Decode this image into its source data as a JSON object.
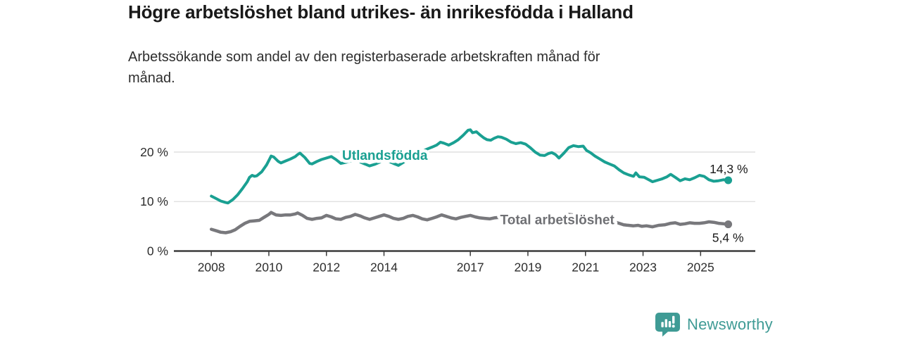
{
  "header": {
    "title": "Högre arbetslöshet bland utrikes- än inrikesfödda i Halland",
    "subtitle": "Arbetssökande som andel av den registerbaserade arbetskraften månad för\nmånad."
  },
  "footer": {
    "brand": "Newsworthy"
  },
  "colors": {
    "series_utlandsfodda": "#1aa092",
    "series_total": "#78787c",
    "label_total": "#6f7074",
    "brand_teal": "#3f9b95",
    "grid": "#dedede",
    "axis": "#3b3b3b",
    "tick_text": "#2d2d2d",
    "annotation_text": "#1a1a1a"
  },
  "chart_data": {
    "type": "line",
    "title": "Högre arbetslöshet bland utrikes- än inrikesfödda i Halland",
    "subtitle": "Arbetssökande som andel av den registerbaserade arbetskraften månad för månad.",
    "grid": "horizontal-only",
    "legend_position": "inline-labels",
    "x_axis": {
      "min": 2006.7,
      "max": 2026.9,
      "ticks": [
        {
          "value": 2008,
          "label": "2008"
        },
        {
          "value": 2010,
          "label": "2010"
        },
        {
          "value": 2012,
          "label": "2012"
        },
        {
          "value": 2014,
          "label": "2014"
        },
        {
          "value": 2017,
          "label": "2017"
        },
        {
          "value": 2019,
          "label": "2019"
        },
        {
          "value": 2021,
          "label": "2021"
        },
        {
          "value": 2023,
          "label": "2023"
        },
        {
          "value": 2025,
          "label": "2025"
        }
      ]
    },
    "y_axis": {
      "min": 0,
      "max": 25.4,
      "unit": "%",
      "ticks": [
        {
          "value": 0,
          "label": "0 %"
        },
        {
          "value": 10,
          "label": "10 %"
        },
        {
          "value": 20,
          "label": "20 %"
        }
      ]
    },
    "series": [
      {
        "id": "utlandsfodda",
        "name": "Utlandsfödda",
        "color": "#1aa092",
        "line_width": 4,
        "inline_label": {
          "text": "Utlandsfödda",
          "year": 2014.03,
          "value": 18.4
        },
        "end_dot": true,
        "end_value": 14.3,
        "end_label": "14,3 %",
        "end_label_offset": {
          "dx": 28,
          "dy": -10
        },
        "points": [
          [
            2008.0,
            11.1
          ],
          [
            2008.17,
            10.6
          ],
          [
            2008.33,
            10.1
          ],
          [
            2008.5,
            9.8
          ],
          [
            2008.58,
            9.7
          ],
          [
            2008.75,
            10.4
          ],
          [
            2008.92,
            11.4
          ],
          [
            2009.08,
            12.6
          ],
          [
            2009.25,
            14.0
          ],
          [
            2009.33,
            14.9
          ],
          [
            2009.42,
            15.3
          ],
          [
            2009.5,
            15.1
          ],
          [
            2009.58,
            15.2
          ],
          [
            2009.75,
            16.0
          ],
          [
            2009.92,
            17.4
          ],
          [
            2010.08,
            19.2
          ],
          [
            2010.17,
            19.0
          ],
          [
            2010.33,
            18.1
          ],
          [
            2010.42,
            17.8
          ],
          [
            2010.58,
            18.2
          ],
          [
            2010.75,
            18.6
          ],
          [
            2010.92,
            19.1
          ],
          [
            2011.0,
            19.5
          ],
          [
            2011.08,
            19.8
          ],
          [
            2011.25,
            18.9
          ],
          [
            2011.42,
            17.7
          ],
          [
            2011.5,
            17.6
          ],
          [
            2011.67,
            18.1
          ],
          [
            2011.83,
            18.5
          ],
          [
            2012.0,
            18.8
          ],
          [
            2012.17,
            19.1
          ],
          [
            2012.33,
            18.5
          ],
          [
            2012.5,
            17.7
          ],
          [
            2012.67,
            17.9
          ],
          [
            2012.83,
            18.2
          ],
          [
            2013.0,
            18.4
          ],
          [
            2013.17,
            18.0
          ],
          [
            2013.33,
            17.6
          ],
          [
            2013.5,
            17.2
          ],
          [
            2013.67,
            17.5
          ],
          [
            2013.83,
            17.9
          ],
          [
            2014.0,
            18.3
          ],
          [
            2014.17,
            18.1
          ],
          [
            2014.33,
            17.7
          ],
          [
            2014.5,
            17.3
          ],
          [
            2014.67,
            17.9
          ],
          [
            2014.83,
            18.6
          ],
          [
            2015.0,
            19.2
          ],
          [
            2015.17,
            19.6
          ],
          [
            2015.33,
            20.1
          ],
          [
            2015.5,
            20.6
          ],
          [
            2015.67,
            21.0
          ],
          [
            2015.83,
            21.4
          ],
          [
            2015.96,
            22.0
          ],
          [
            2016.08,
            21.8
          ],
          [
            2016.25,
            21.4
          ],
          [
            2016.42,
            21.9
          ],
          [
            2016.58,
            22.5
          ],
          [
            2016.75,
            23.4
          ],
          [
            2016.92,
            24.4
          ],
          [
            2017.0,
            24.5
          ],
          [
            2017.08,
            23.9
          ],
          [
            2017.21,
            24.1
          ],
          [
            2017.33,
            23.5
          ],
          [
            2017.46,
            22.9
          ],
          [
            2017.58,
            22.5
          ],
          [
            2017.71,
            22.4
          ],
          [
            2017.83,
            22.8
          ],
          [
            2017.96,
            23.1
          ],
          [
            2018.08,
            23.0
          ],
          [
            2018.25,
            22.6
          ],
          [
            2018.42,
            22.0
          ],
          [
            2018.58,
            21.7
          ],
          [
            2018.75,
            21.9
          ],
          [
            2018.92,
            21.6
          ],
          [
            2019.08,
            20.9
          ],
          [
            2019.25,
            20.0
          ],
          [
            2019.42,
            19.4
          ],
          [
            2019.58,
            19.3
          ],
          [
            2019.71,
            19.7
          ],
          [
            2019.83,
            19.9
          ],
          [
            2019.96,
            19.5
          ],
          [
            2020.08,
            18.8
          ],
          [
            2020.25,
            19.8
          ],
          [
            2020.42,
            20.9
          ],
          [
            2020.58,
            21.3
          ],
          [
            2020.75,
            21.1
          ],
          [
            2020.92,
            21.2
          ],
          [
            2021.04,
            20.3
          ],
          [
            2021.17,
            19.9
          ],
          [
            2021.33,
            19.2
          ],
          [
            2021.5,
            18.6
          ],
          [
            2021.67,
            18.0
          ],
          [
            2021.83,
            17.6
          ],
          [
            2022.0,
            17.2
          ],
          [
            2022.17,
            16.4
          ],
          [
            2022.33,
            15.8
          ],
          [
            2022.5,
            15.4
          ],
          [
            2022.67,
            15.1
          ],
          [
            2022.75,
            15.8
          ],
          [
            2022.87,
            15.0
          ],
          [
            2023.04,
            14.9
          ],
          [
            2023.17,
            14.5
          ],
          [
            2023.33,
            14.0
          ],
          [
            2023.5,
            14.3
          ],
          [
            2023.67,
            14.6
          ],
          [
            2023.83,
            15.0
          ],
          [
            2023.96,
            15.5
          ],
          [
            2024.12,
            14.9
          ],
          [
            2024.29,
            14.2
          ],
          [
            2024.46,
            14.6
          ],
          [
            2024.62,
            14.4
          ],
          [
            2024.79,
            14.8
          ],
          [
            2024.96,
            15.3
          ],
          [
            2025.12,
            15.1
          ],
          [
            2025.29,
            14.4
          ],
          [
            2025.46,
            14.1
          ],
          [
            2025.62,
            14.2
          ],
          [
            2025.79,
            14.4
          ],
          [
            2025.96,
            14.3
          ]
        ]
      },
      {
        "id": "total",
        "name": "Total arbetslöshet",
        "color": "#78787c",
        "line_width": 4.5,
        "inline_label": {
          "text": "Total arbetslöshet",
          "year": 2020.02,
          "value": 5.4
        },
        "end_dot": true,
        "end_value": 5.4,
        "end_label": "5,4 %",
        "end_label_offset": {
          "dx": 22,
          "dy": 25
        },
        "points": [
          [
            2008.0,
            4.4
          ],
          [
            2008.17,
            4.1
          ],
          [
            2008.33,
            3.8
          ],
          [
            2008.5,
            3.7
          ],
          [
            2008.67,
            3.9
          ],
          [
            2008.83,
            4.3
          ],
          [
            2009.0,
            5.0
          ],
          [
            2009.17,
            5.6
          ],
          [
            2009.33,
            6.0
          ],
          [
            2009.5,
            6.1
          ],
          [
            2009.67,
            6.2
          ],
          [
            2009.83,
            6.8
          ],
          [
            2010.0,
            7.4
          ],
          [
            2010.08,
            7.8
          ],
          [
            2010.25,
            7.3
          ],
          [
            2010.42,
            7.2
          ],
          [
            2010.58,
            7.3
          ],
          [
            2010.75,
            7.3
          ],
          [
            2010.92,
            7.5
          ],
          [
            2011.0,
            7.7
          ],
          [
            2011.17,
            7.2
          ],
          [
            2011.33,
            6.6
          ],
          [
            2011.5,
            6.4
          ],
          [
            2011.67,
            6.6
          ],
          [
            2011.83,
            6.7
          ],
          [
            2012.0,
            7.2
          ],
          [
            2012.17,
            6.9
          ],
          [
            2012.33,
            6.5
          ],
          [
            2012.5,
            6.4
          ],
          [
            2012.67,
            6.8
          ],
          [
            2012.83,
            7.0
          ],
          [
            2013.0,
            7.4
          ],
          [
            2013.17,
            7.1
          ],
          [
            2013.33,
            6.7
          ],
          [
            2013.5,
            6.4
          ],
          [
            2013.67,
            6.7
          ],
          [
            2013.83,
            7.0
          ],
          [
            2014.0,
            7.3
          ],
          [
            2014.17,
            7.0
          ],
          [
            2014.33,
            6.6
          ],
          [
            2014.5,
            6.4
          ],
          [
            2014.67,
            6.6
          ],
          [
            2014.83,
            7.0
          ],
          [
            2015.0,
            7.2
          ],
          [
            2015.17,
            6.9
          ],
          [
            2015.33,
            6.5
          ],
          [
            2015.5,
            6.3
          ],
          [
            2015.67,
            6.6
          ],
          [
            2015.83,
            6.9
          ],
          [
            2016.0,
            7.3
          ],
          [
            2016.17,
            7.0
          ],
          [
            2016.33,
            6.7
          ],
          [
            2016.5,
            6.5
          ],
          [
            2016.67,
            6.8
          ],
          [
            2016.83,
            7.0
          ],
          [
            2017.0,
            7.2
          ],
          [
            2017.17,
            6.9
          ],
          [
            2017.33,
            6.7
          ],
          [
            2017.5,
            6.6
          ],
          [
            2017.67,
            6.5
          ],
          [
            2017.83,
            6.7
          ],
          [
            2018.0,
            6.8
          ],
          [
            2018.25,
            6.5
          ],
          [
            2018.5,
            6.3
          ],
          [
            2018.75,
            6.4
          ],
          [
            2019.0,
            6.4
          ],
          [
            2019.25,
            6.1
          ],
          [
            2019.5,
            6.0
          ],
          [
            2019.75,
            6.1
          ],
          [
            2020.0,
            6.2
          ],
          [
            2020.25,
            6.9
          ],
          [
            2020.42,
            7.4
          ],
          [
            2020.58,
            7.3
          ],
          [
            2020.83,
            7.2
          ],
          [
            2021.0,
            7.0
          ],
          [
            2021.25,
            6.7
          ],
          [
            2021.5,
            6.4
          ],
          [
            2021.75,
            6.1
          ],
          [
            2022.0,
            5.9
          ],
          [
            2022.17,
            5.6
          ],
          [
            2022.33,
            5.3
          ],
          [
            2022.5,
            5.2
          ],
          [
            2022.67,
            5.1
          ],
          [
            2022.83,
            5.2
          ],
          [
            2022.96,
            5.0
          ],
          [
            2023.12,
            5.1
          ],
          [
            2023.33,
            4.9
          ],
          [
            2023.54,
            5.2
          ],
          [
            2023.75,
            5.3
          ],
          [
            2023.96,
            5.6
          ],
          [
            2024.12,
            5.7
          ],
          [
            2024.29,
            5.4
          ],
          [
            2024.46,
            5.5
          ],
          [
            2024.62,
            5.7
          ],
          [
            2024.79,
            5.6
          ],
          [
            2024.96,
            5.6
          ],
          [
            2025.12,
            5.7
          ],
          [
            2025.29,
            5.9
          ],
          [
            2025.46,
            5.8
          ],
          [
            2025.62,
            5.6
          ],
          [
            2025.79,
            5.5
          ],
          [
            2025.96,
            5.4
          ]
        ]
      }
    ]
  }
}
